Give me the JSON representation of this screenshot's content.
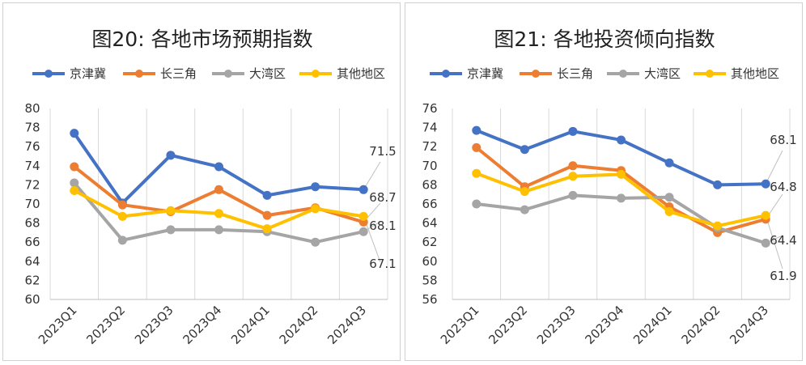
{
  "chart_data": [
    {
      "type": "line",
      "title": "图20: 各地市场预期指数",
      "categories": [
        "2023Q1",
        "2023Q2",
        "2023Q3",
        "2023Q4",
        "2024Q1",
        "2024Q2",
        "2024Q3"
      ],
      "ylim": [
        60,
        80
      ],
      "yticks": [
        60,
        62,
        64,
        66,
        68,
        70,
        72,
        74,
        76,
        78,
        80
      ],
      "grid": "vertical",
      "legend": "top",
      "series": [
        {
          "name": "京津冀",
          "color": "#4472C4",
          "values": [
            77.4,
            70.1,
            75.1,
            73.9,
            70.9,
            71.8,
            71.5
          ]
        },
        {
          "name": "长三角",
          "color": "#ED7D31",
          "values": [
            73.9,
            69.9,
            69.2,
            71.5,
            68.8,
            69.6,
            68.1
          ]
        },
        {
          "name": "大湾区",
          "color": "#A5A5A5",
          "values": [
            72.2,
            66.2,
            67.3,
            67.3,
            67.1,
            66.0,
            67.1
          ]
        },
        {
          "name": "其他地区",
          "color": "#FFC000",
          "values": [
            71.4,
            68.7,
            69.3,
            69.0,
            67.4,
            69.5,
            68.7
          ]
        }
      ],
      "end_labels": [
        "71.5",
        "68.7",
        "68.1",
        "67.1"
      ]
    },
    {
      "type": "line",
      "title": "图21: 各地投资倾向指数",
      "categories": [
        "2023Q1",
        "2023Q2",
        "2023Q3",
        "2023Q4",
        "2024Q1",
        "2024Q2",
        "2024Q3"
      ],
      "ylim": [
        56,
        76
      ],
      "yticks": [
        56,
        58,
        60,
        62,
        64,
        66,
        68,
        70,
        72,
        74,
        76
      ],
      "grid": "vertical",
      "legend": "top",
      "series": [
        {
          "name": "京津冀",
          "color": "#4472C4",
          "values": [
            73.7,
            71.7,
            73.6,
            72.7,
            70.3,
            68.0,
            68.1
          ]
        },
        {
          "name": "长三角",
          "color": "#ED7D31",
          "values": [
            71.9,
            67.8,
            70.0,
            69.5,
            65.7,
            63.0,
            64.4
          ]
        },
        {
          "name": "大湾区",
          "color": "#A5A5A5",
          "values": [
            66.0,
            65.4,
            66.9,
            66.6,
            66.7,
            63.5,
            61.9
          ]
        },
        {
          "name": "其他地区",
          "color": "#FFC000",
          "values": [
            69.2,
            67.3,
            68.9,
            69.1,
            65.2,
            63.7,
            64.8
          ]
        }
      ],
      "end_labels": [
        "68.1",
        "64.8",
        "64.4",
        "61.9"
      ]
    }
  ]
}
